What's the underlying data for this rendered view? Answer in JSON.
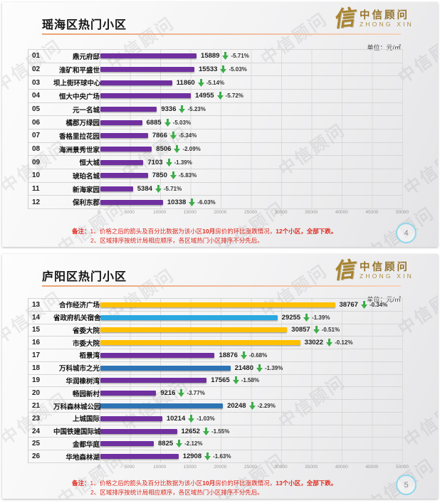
{
  "watermark": "中信顾问",
  "logo": {
    "symbol": "信",
    "name": "中信顾问",
    "sub": "ZHONG XIN"
  },
  "unit_label": "单位：元/㎡",
  "note_prefix": "备注：",
  "colors": {
    "purple": "#7030A0",
    "yellow": "#FFC000",
    "cyan": "#29A9E0",
    "steel": "#2E74B5",
    "green": "#3DAE49",
    "note_red": "#E02B20",
    "accent_line": "#ECA277",
    "page_circle": "#90D7E9"
  },
  "axis": {
    "min": 0,
    "max": 50000,
    "ticks": [
      "0",
      "5000",
      "10000",
      "15000",
      "20000",
      "25000",
      "30000",
      "35000",
      "40000",
      "45000",
      "50000"
    ]
  },
  "slides": [
    {
      "title": "瑶海区热门小区",
      "page": "4",
      "note_line1": [
        {
          "t": "1、价格之后的箭头及百分比数据为该小区",
          "b": 0
        },
        {
          "t": "10月",
          "b": 1
        },
        {
          "t": "房价的环比涨跌情况，",
          "b": 0
        },
        {
          "t": "12个小区，全部下跌。",
          "b": 1
        }
      ],
      "note_line2": "2、区域排序按统计局相应顺序，各区域热门小区排序不分先后。",
      "rows": [
        {
          "num": "01",
          "name": "鼎元府邸",
          "value": 15889,
          "pct": "-5.71%",
          "color": "purple"
        },
        {
          "num": "02",
          "name": "淮矿和平盛世",
          "value": 15533,
          "pct": "-5.03%",
          "color": "purple"
        },
        {
          "num": "03",
          "name": "坝上街环球中心",
          "value": 11860,
          "pct": "-5.14%",
          "color": "purple"
        },
        {
          "num": "04",
          "name": "恒大中央广场",
          "value": 14955,
          "pct": "-5.72%",
          "color": "purple"
        },
        {
          "num": "05",
          "name": "元一名城",
          "value": 9336,
          "pct": "-5.23%",
          "color": "purple"
        },
        {
          "num": "06",
          "name": "橘郡万绿园",
          "value": 6885,
          "pct": "-5.03%",
          "color": "purple"
        },
        {
          "num": "07",
          "name": "香格里拉花园",
          "value": 7866,
          "pct": "-5.34%",
          "color": "purple"
        },
        {
          "num": "08",
          "name": "海洲景秀世家",
          "value": 8506,
          "pct": "-2.09%",
          "color": "purple"
        },
        {
          "num": "09",
          "name": "恒大城",
          "value": 7103,
          "pct": "-1.39%",
          "color": "purple"
        },
        {
          "num": "10",
          "name": "琥珀名城",
          "value": 7850,
          "pct": "-5.83%",
          "color": "purple"
        },
        {
          "num": "11",
          "name": "新海家园",
          "value": 5384,
          "pct": "-5.71%",
          "color": "purple"
        },
        {
          "num": "12",
          "name": "保利东郡",
          "value": 10338,
          "pct": "-6.03%",
          "color": "purple"
        }
      ]
    },
    {
      "title": "庐阳区热门小区",
      "page": "5",
      "note_line1": [
        {
          "t": "1、价格之后的箭头及百分比数据为该小区",
          "b": 0
        },
        {
          "t": "10月",
          "b": 1
        },
        {
          "t": "房价的环比涨跌情况，",
          "b": 0
        },
        {
          "t": "13个小区，全部下跌。",
          "b": 1
        }
      ],
      "note_line2": "2、区域排序按统计局相应顺序，各区域热门小区排序不分先后。",
      "rows": [
        {
          "num": "13",
          "name": "合作经济广场",
          "value": 38767,
          "pct": "-0.34%",
          "color": "yellow"
        },
        {
          "num": "14",
          "name": "省政府机关宿舍",
          "value": 29255,
          "pct": "-1.39%",
          "color": "cyan"
        },
        {
          "num": "15",
          "name": "省委大院",
          "value": 30857,
          "pct": "-0.51%",
          "color": "yellow"
        },
        {
          "num": "16",
          "name": "市委大院",
          "value": 33022,
          "pct": "-0.12%",
          "color": "yellow"
        },
        {
          "num": "17",
          "name": "栢景湾",
          "value": 18876,
          "pct": "-0.68%",
          "color": "purple"
        },
        {
          "num": "18",
          "name": "万科城市之光",
          "value": 21480,
          "pct": "-1.39%",
          "color": "steel"
        },
        {
          "num": "19",
          "name": "华润橡树湾",
          "value": 17565,
          "pct": "-1.58%",
          "color": "purple"
        },
        {
          "num": "20",
          "name": "畅园新村",
          "value": 9216,
          "pct": "-3.77%",
          "color": "purple"
        },
        {
          "num": "21",
          "name": "万科森林城公园",
          "value": 20248,
          "pct": "-2.29%",
          "color": "steel"
        },
        {
          "num": "23",
          "name": "上城国际",
          "value": 10214,
          "pct": "-1.03%",
          "color": "purple"
        },
        {
          "num": "24",
          "name": "中国铁建国际城",
          "value": 12652,
          "pct": "-1.55%",
          "color": "purple"
        },
        {
          "num": "25",
          "name": "金都华庭",
          "value": 8825,
          "pct": "-2.12%",
          "color": "purple"
        },
        {
          "num": "26",
          "name": "华地森林湖",
          "value": 12908,
          "pct": "-1.63%",
          "color": "purple"
        }
      ]
    }
  ],
  "chart_data": [
    {
      "type": "bar",
      "orientation": "horizontal",
      "title": "瑶海区热门小区",
      "unit": "元/㎡",
      "xlim": [
        0,
        50000
      ],
      "xticks": [
        0,
        5000,
        10000,
        15000,
        20000,
        25000,
        30000,
        35000,
        40000,
        45000,
        50000
      ],
      "grid": true,
      "categories": [
        "鼎元府邸",
        "淮矿和平盛世",
        "坝上街环球中心",
        "恒大中央广场",
        "元一名城",
        "橘郡万绿园",
        "香格里拉花园",
        "海洲景秀世家",
        "恒大城",
        "琥珀名城",
        "新海家园",
        "保利东郡"
      ],
      "values": [
        15889,
        15533,
        11860,
        14955,
        9336,
        6885,
        7866,
        8506,
        7103,
        7850,
        5384,
        10338
      ],
      "mom_change_pct": [
        -5.71,
        -5.03,
        -5.14,
        -5.72,
        -5.23,
        -5.03,
        -5.34,
        -2.09,
        -1.39,
        -5.83,
        -5.71,
        -6.03
      ],
      "bar_color": "#7030A0"
    },
    {
      "type": "bar",
      "orientation": "horizontal",
      "title": "庐阳区热门小区",
      "unit": "元/㎡",
      "xlim": [
        0,
        50000
      ],
      "xticks": [
        0,
        5000,
        10000,
        15000,
        20000,
        25000,
        30000,
        35000,
        40000,
        45000,
        50000
      ],
      "grid": true,
      "categories": [
        "合作经济广场",
        "省政府机关宿舍",
        "省委大院",
        "市委大院",
        "栢景湾",
        "万科城市之光",
        "华润橡树湾",
        "畅园新村",
        "万科森林城公园",
        "上城国际",
        "中国铁建国际城",
        "金都华庭",
        "华地森林湖"
      ],
      "values": [
        38767,
        29255,
        30857,
        33022,
        18876,
        21480,
        17565,
        9216,
        20248,
        10214,
        12652,
        8825,
        12908
      ],
      "mom_change_pct": [
        -0.34,
        -1.39,
        -0.51,
        -0.12,
        -0.68,
        -1.39,
        -1.58,
        -3.77,
        -2.29,
        -1.03,
        -1.55,
        -2.12,
        -1.63
      ],
      "bar_colors": [
        "#FFC000",
        "#29A9E0",
        "#FFC000",
        "#FFC000",
        "#7030A0",
        "#2E74B5",
        "#7030A0",
        "#7030A0",
        "#2E74B5",
        "#7030A0",
        "#7030A0",
        "#7030A0",
        "#7030A0"
      ]
    }
  ]
}
